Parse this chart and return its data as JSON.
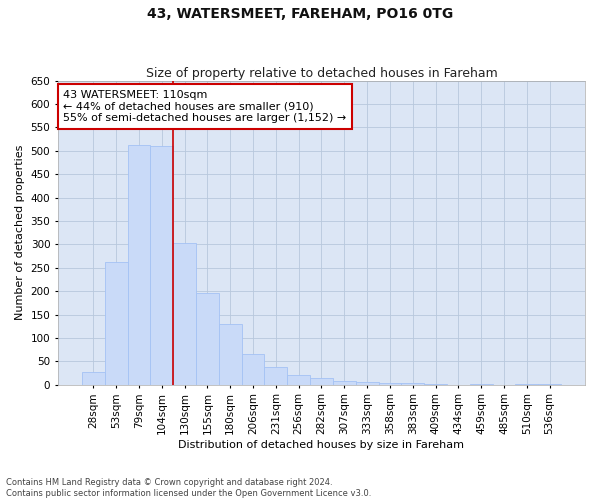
{
  "title": "43, WATERSMEET, FAREHAM, PO16 0TG",
  "subtitle": "Size of property relative to detached houses in Fareham",
  "xlabel": "Distribution of detached houses by size in Fareham",
  "ylabel": "Number of detached properties",
  "footer_line1": "Contains HM Land Registry data © Crown copyright and database right 2024.",
  "footer_line2": "Contains public sector information licensed under the Open Government Licence v3.0.",
  "categories": [
    "28sqm",
    "53sqm",
    "79sqm",
    "104sqm",
    "130sqm",
    "155sqm",
    "180sqm",
    "206sqm",
    "231sqm",
    "256sqm",
    "282sqm",
    "307sqm",
    "333sqm",
    "358sqm",
    "383sqm",
    "409sqm",
    "434sqm",
    "459sqm",
    "485sqm",
    "510sqm",
    "536sqm"
  ],
  "values": [
    28,
    263,
    512,
    510,
    302,
    197,
    130,
    65,
    38,
    21,
    14,
    8,
    5,
    3,
    3,
    1,
    0,
    1,
    0,
    1,
    2
  ],
  "bar_color": "#c9daf8",
  "bar_edge_color": "#a4c2f4",
  "vline_x": 3.5,
  "vline_color": "#cc0000",
  "annotation_text": "43 WATERSMEET: 110sqm\n← 44% of detached houses are smaller (910)\n55% of semi-detached houses are larger (1,152) →",
  "annotation_box_color": "#ffffff",
  "annotation_box_edge": "#cc0000",
  "ylim": [
    0,
    650
  ],
  "yticks": [
    0,
    50,
    100,
    150,
    200,
    250,
    300,
    350,
    400,
    450,
    500,
    550,
    600,
    650
  ],
  "bg_color": "#ffffff",
  "plot_bg_color": "#dce6f5",
  "grid_color": "#b8c8dc",
  "title_fontsize": 10,
  "subtitle_fontsize": 9,
  "axis_label_fontsize": 8,
  "tick_fontsize": 7.5,
  "annotation_fontsize": 8,
  "footer_fontsize": 6
}
